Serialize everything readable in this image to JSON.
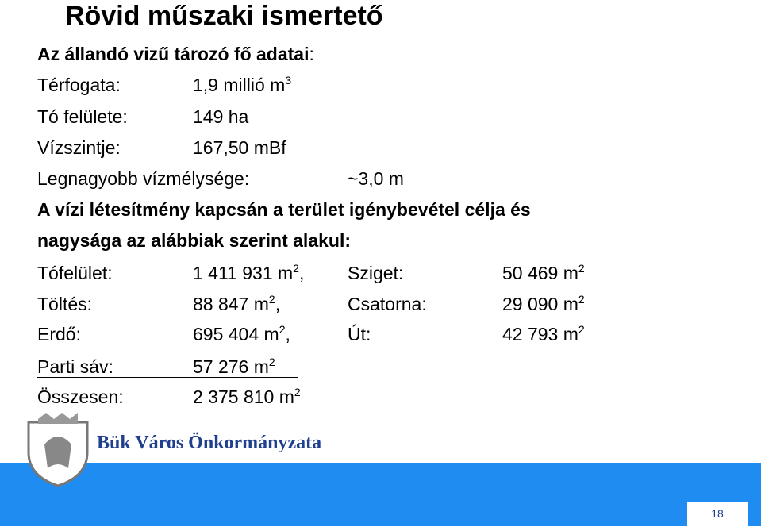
{
  "title": "Rövid műszaki ismertető",
  "reservoir": {
    "heading": "Az állandó vizű tározó fő adatai",
    "heading_colon": ":",
    "rows": [
      {
        "label": "Térfogata:",
        "value": "1,9 millió m",
        "sup": "3"
      },
      {
        "label": "Tó felülete:",
        "value": "149 ha"
      },
      {
        "label": "Vízszintje:",
        "value": "167,50 mBf"
      },
      {
        "label": "Legnagyobb vízmélysége:",
        "value": "~3,0 m"
      }
    ]
  },
  "land_use": {
    "heading": [
      "A vízi létesítmény kapcsán a terület igénybevétel célja és",
      "nagysága az alábbiak szerint alakul:"
    ],
    "rows": [
      [
        {
          "label": "Tófelület:",
          "value": "1 411 931 m",
          "sup": "2",
          "suffix": ","
        },
        {
          "label": "Sziget:",
          "value": "50 469 m",
          "sup": "2"
        }
      ],
      [
        {
          "label": "Töltés:",
          "value": "88 847 m",
          "sup": "2",
          "suffix": ","
        },
        {
          "label": "Csatorna:",
          "value": "29 090 m",
          "sup": "2"
        }
      ],
      [
        {
          "label": "Erdő:",
          "value": "695 404 m",
          "sup": "2",
          "suffix": ","
        },
        {
          "label": "Út:",
          "value": "42 793 m",
          "sup": "2"
        }
      ]
    ],
    "subtotal": {
      "label": "Parti sáv:",
      "value": "57 276 m",
      "sup": "2"
    },
    "total": {
      "label": "Összesen:",
      "value": "2 375 810 m",
      "sup": "2"
    }
  },
  "footer": {
    "organization": "Bük Város Önkormányzata",
    "page_number": "18"
  }
}
